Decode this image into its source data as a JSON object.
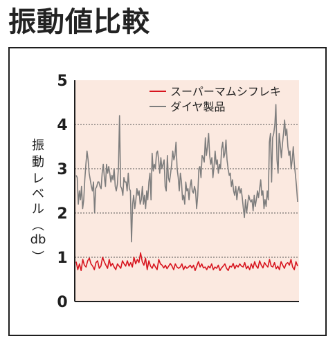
{
  "title": "振動値比較",
  "chart_data": {
    "type": "line",
    "ylabel_chars": [
      "振",
      "動",
      "レ",
      "ベ",
      "ル",
      "︵",
      "db",
      "︶"
    ],
    "ylim": [
      0,
      5
    ],
    "yticks": [
      "0",
      "1",
      "2",
      "3",
      "4",
      "5"
    ],
    "grid": true,
    "legend": "top-right",
    "series": [
      {
        "name": "スーパーマムシフレキ",
        "color": "#d7141e",
        "values": [
          0.9,
          0.72,
          0.85,
          0.7,
          0.95,
          0.82,
          0.78,
          0.92,
          0.98,
          0.85,
          0.8,
          0.72,
          0.88,
          0.92,
          0.75,
          0.8,
          1.0,
          0.9,
          0.82,
          0.75,
          0.95,
          0.8,
          0.86,
          0.78,
          0.72,
          0.85,
          0.8,
          0.75,
          0.92,
          0.85,
          0.8,
          0.92,
          0.8,
          0.88,
          0.78,
          1.0,
          0.85,
          0.95,
          0.88,
          1.1,
          0.9,
          0.82,
          0.98,
          0.72,
          0.92,
          0.8,
          0.75,
          0.85,
          0.78,
          0.72,
          0.95,
          0.85,
          0.82,
          0.76,
          0.82,
          0.74,
          0.8,
          0.86,
          0.8,
          0.72,
          0.85,
          0.78,
          0.75,
          0.78,
          0.85,
          0.72,
          0.8,
          0.75,
          0.78,
          0.82,
          0.76,
          0.82,
          0.7,
          0.8,
          0.9,
          0.78,
          0.85,
          0.76,
          0.78,
          0.72,
          0.8,
          0.76,
          0.85,
          0.72,
          0.78,
          0.75,
          0.82,
          0.7,
          0.76,
          0.8,
          0.85,
          0.75,
          0.7,
          0.8,
          0.78,
          0.86,
          0.74,
          0.82,
          0.78,
          0.85,
          0.8,
          0.78,
          0.88,
          0.74,
          0.8,
          0.72,
          0.85,
          0.75,
          0.9,
          0.8,
          0.75,
          0.92,
          0.82,
          0.76,
          0.88,
          0.82,
          0.78,
          0.95,
          0.8,
          0.78,
          0.88,
          0.74,
          0.8,
          0.72,
          0.9,
          0.82,
          0.75,
          0.85,
          0.88,
          0.82,
          0.95,
          0.78,
          0.72,
          0.9,
          0.8
        ]
      },
      {
        "name": "ダイヤ製品",
        "color": "#7d7d7d",
        "values": [
          2.85,
          2.8,
          2.2,
          2.5,
          2.3,
          2.6,
          2.1,
          2.3,
          2.75,
          3.1,
          3.4,
          3.2,
          2.9,
          2.75,
          2.6,
          2.5,
          2.7,
          2.0,
          2.55,
          2.6,
          2.7,
          2.7,
          2.6,
          2.55,
          2.9,
          3.1,
          2.8,
          2.6,
          3.1,
          2.9,
          3.05,
          2.9,
          2.7,
          2.85,
          2.75,
          3.0,
          2.6,
          2.5,
          2.65,
          3.05,
          4.2,
          2.6,
          2.55,
          2.4,
          2.8,
          2.7,
          2.7,
          2.5,
          2.9,
          2.55,
          2.5,
          1.35,
          2.2,
          2.4,
          2.1,
          2.3,
          2.55,
          2.4,
          2.5,
          2.2,
          2.3,
          2.6,
          2.2,
          2.4,
          2.1,
          2.5,
          2.3,
          2.7,
          2.9,
          2.3,
          3.35,
          2.95,
          3.1,
          3.0,
          3.35,
          3.4,
          3.2,
          2.9,
          3.25,
          3.0,
          3.1,
          3.2,
          2.6,
          2.5,
          3.3,
          2.8,
          2.7,
          2.9,
          3.1,
          3.4,
          3.2,
          3.3,
          3.6,
          3.0,
          2.8,
          2.5,
          2.9,
          2.7,
          2.3,
          2.4,
          2.2,
          2.7,
          2.5,
          2.55,
          2.3,
          2.6,
          2.75,
          2.5,
          2.45,
          2.6,
          2.5,
          2.1,
          2.4,
          3.0,
          3.05,
          2.8,
          3.3,
          3.25,
          3.15,
          3.7,
          3.3,
          3.5,
          3.8,
          3.3,
          3.1,
          3.25,
          2.8,
          3.05,
          3.4,
          3.1,
          3.2,
          2.9,
          3.1,
          3.0,
          3.45,
          3.6,
          3.25,
          3.35,
          3.65,
          3.2,
          3.0,
          2.85,
          2.9,
          2.6,
          2.75,
          2.5,
          2.4,
          2.6,
          2.3,
          2.5,
          2.6,
          2.45,
          2.55,
          2.35,
          2.1,
          1.9,
          2.3,
          2.0,
          2.2,
          2.4,
          2.3,
          2.25,
          2.3,
          2.05,
          2.4,
          2.15,
          2.3,
          2.5,
          2.35,
          2.55,
          2.75,
          2.4,
          2.5,
          2.1,
          2.3,
          2.15,
          2.5,
          2.3,
          3.6,
          3.8,
          2.7,
          3.7,
          3.8,
          4.0,
          4.45,
          3.2,
          2.9,
          3.8,
          3.55,
          3.25,
          3.55,
          3.8,
          4.1,
          3.75,
          3.9,
          3.5,
          3.3,
          3.4,
          3.0,
          3.2,
          3.5,
          3.1,
          2.85,
          2.6,
          2.25
        ]
      }
    ]
  }
}
